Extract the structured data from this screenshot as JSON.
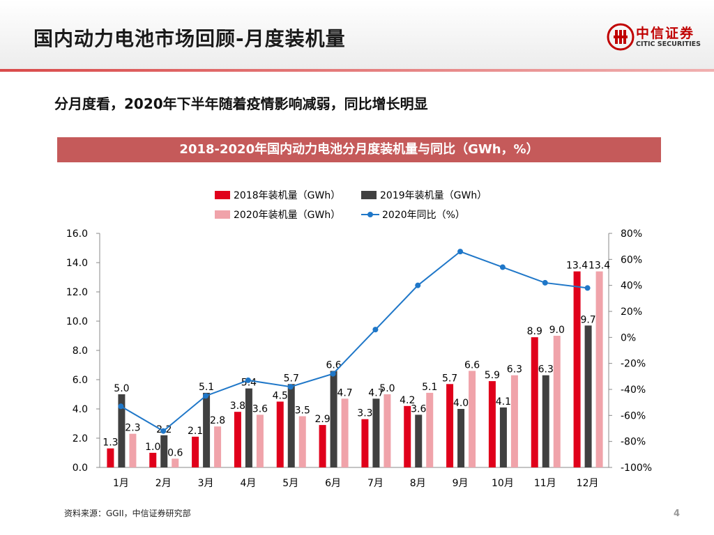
{
  "page": {
    "title": "国内动力电池市场回顾-月度装机量",
    "subtitle": "分月度看，2020年下半年随着疫情影响减弱，同比增长明显",
    "banner": "2018-2020年国内动力电池分月度装机量与同比（GWh，%）",
    "source": "资料来源：GGII，中信证券研究部",
    "page_number": "4"
  },
  "logo": {
    "cn": "中信证券",
    "en": "CITIC SECURITIES"
  },
  "colors": {
    "s2018": "#e0001b",
    "s2019": "#404040",
    "s2020": "#f0a3aa",
    "line": "#1f77c8",
    "accent": "#c55a5a"
  },
  "chart_data": {
    "type": "bar",
    "categories": [
      "1月",
      "2月",
      "3月",
      "4月",
      "5月",
      "6月",
      "7月",
      "8月",
      "9月",
      "10月",
      "11月",
      "12月"
    ],
    "series": [
      {
        "name": "2018年装机量（GWh）",
        "type": "bar",
        "axis": "left",
        "values": [
          1.3,
          1.0,
          2.1,
          3.8,
          4.5,
          2.9,
          3.3,
          4.2,
          5.7,
          5.9,
          8.9,
          13.4
        ]
      },
      {
        "name": "2019年装机量（GWh）",
        "type": "bar",
        "axis": "left",
        "values": [
          5.0,
          2.2,
          5.1,
          5.4,
          5.7,
          6.6,
          4.7,
          3.6,
          4.0,
          4.1,
          6.3,
          9.7
        ]
      },
      {
        "name": "2020年装机量（GWh）",
        "type": "bar",
        "axis": "left",
        "values": [
          2.3,
          0.6,
          2.8,
          3.6,
          3.5,
          4.7,
          5.0,
          5.1,
          6.6,
          6.3,
          9.0,
          13.4
        ]
      },
      {
        "name": "2020年同比（%）",
        "type": "line",
        "axis": "right",
        "values": [
          -53,
          -72,
          -45,
          -33,
          -38,
          -28,
          6,
          40,
          66,
          54,
          42,
          38
        ]
      }
    ],
    "left_axis": {
      "min": 0,
      "max": 16,
      "step": 2,
      "ticks": [
        "0.0",
        "2.0",
        "4.0",
        "6.0",
        "8.0",
        "10.0",
        "12.0",
        "14.0",
        "16.0"
      ]
    },
    "right_axis": {
      "min": -100,
      "max": 80,
      "step": 20,
      "ticks": [
        "-100%",
        "-80%",
        "-60%",
        "-40%",
        "-20%",
        "0%",
        "20%",
        "40%",
        "60%",
        "80%"
      ]
    },
    "labels": {
      "s2018": [
        "1.3",
        "1.0",
        "2.1",
        "3.8",
        "4.5",
        "2.9",
        "3.3",
        "4.2",
        "5.7",
        "5.9",
        "8.9",
        "13.4"
      ],
      "s2019": [
        "5.0",
        "2.2",
        "5.1",
        "5.4",
        "5.7",
        "6.6",
        "4.7",
        "3.6",
        "4.0",
        "4.1",
        "6.3",
        "9.7"
      ],
      "s2020": [
        "2.3",
        "0.6",
        "2.8",
        "3.6",
        "3.5",
        "4.7",
        "5.0",
        "5.1",
        "6.6",
        "6.3",
        "9.0",
        "13.4"
      ]
    },
    "legend": [
      "2018年装机量（GWh）",
      "2019年装机量（GWh）",
      "2020年装机量（GWh）",
      "2020年同比（%）"
    ],
    "legend_position": "top"
  }
}
